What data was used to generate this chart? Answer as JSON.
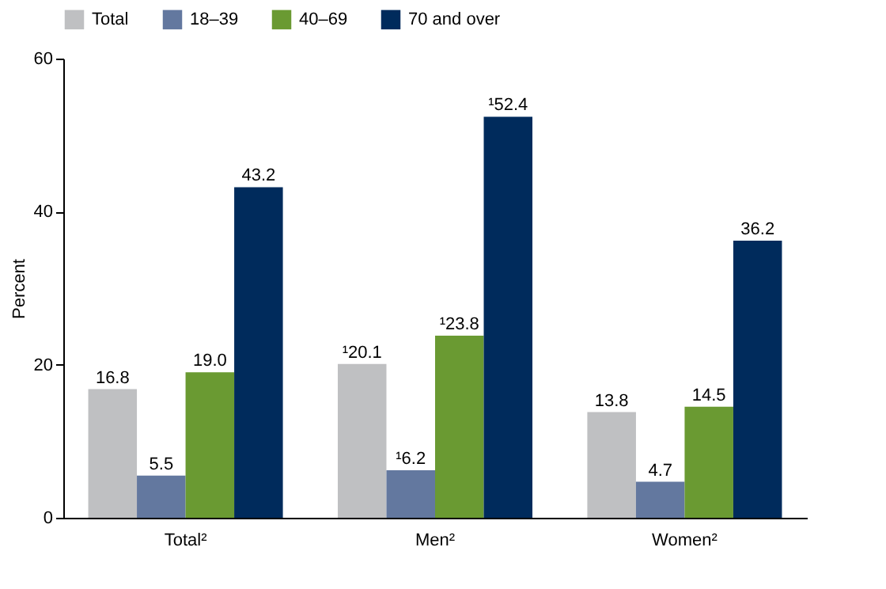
{
  "chart_data": {
    "type": "bar",
    "ylabel": "Percent",
    "categories": [
      "Total²",
      "Men²",
      "Women²"
    ],
    "series": [
      {
        "name": "Total",
        "color": "#bfc0c2",
        "values": [
          16.8,
          20.1,
          13.8
        ],
        "value_labels": [
          "16.8",
          "¹20.1",
          "13.8"
        ]
      },
      {
        "name": "18–39",
        "color": "#63789f",
        "values": [
          5.5,
          6.2,
          4.7
        ],
        "value_labels": [
          "5.5",
          "¹6.2",
          "4.7"
        ]
      },
      {
        "name": "40–69",
        "color": "#6a9a32",
        "values": [
          19.0,
          23.8,
          14.5
        ],
        "value_labels": [
          "19.0",
          "¹23.8",
          "14.5"
        ]
      },
      {
        "name": "70 and over",
        "color": "#002b5c",
        "values": [
          43.2,
          52.4,
          36.2
        ],
        "value_labels": [
          "43.2",
          "¹52.4",
          "36.2"
        ]
      }
    ],
    "ylim": [
      0,
      60
    ],
    "yticks": [
      0,
      20,
      40,
      60
    ],
    "grid": false,
    "legend": "top"
  }
}
